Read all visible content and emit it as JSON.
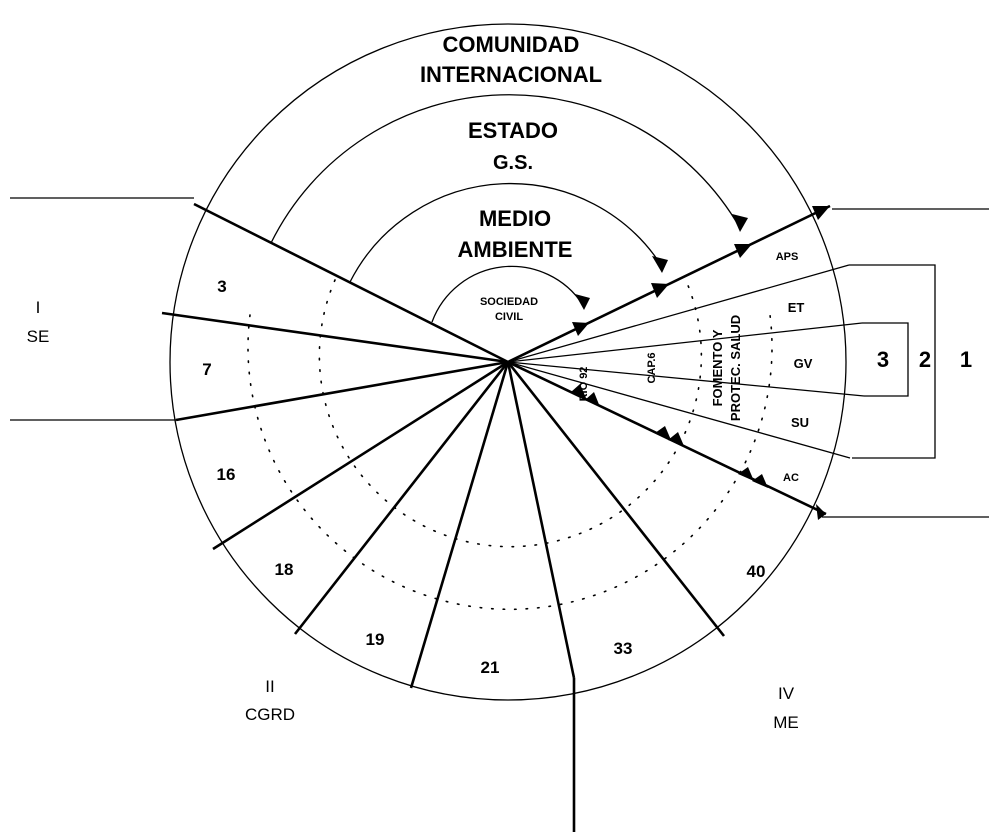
{
  "rings": {
    "outer": [
      "COMUNIDAD",
      "INTERNACIONAL"
    ],
    "state": [
      "ESTADO",
      "G.S."
    ],
    "environment": [
      "MEDIO",
      "AMBIENTE"
    ],
    "civil": [
      "SOCIEDAD",
      "CIVIL"
    ]
  },
  "left_sectors": [
    "3",
    "7",
    "16",
    "18",
    "19",
    "21",
    "33",
    "40"
  ],
  "right_sectors": [
    "APS",
    "ET",
    "GV",
    "SU",
    "AC"
  ],
  "radial_labels": {
    "rio": "RIO 92",
    "cap": "CAP.6",
    "fomento": "FOMENTO Y",
    "protec": "PROTEC. SALUD"
  },
  "side_labels": {
    "i_numeral": "I",
    "i_code": "SE",
    "ii_numeral": "II",
    "ii_code": "CGRD",
    "iv_numeral": "IV",
    "iv_code": "ME"
  },
  "brackets": [
    "3",
    "2",
    "1"
  ]
}
